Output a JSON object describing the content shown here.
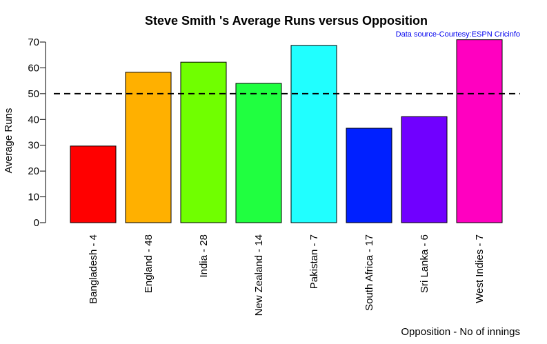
{
  "chart_data": {
    "type": "bar",
    "title": "Steve Smith 's Average Runs versus Opposition",
    "source_note": "Data source-Courtesy:ESPN Cricinfo",
    "xlabel": "Opposition - No of innings",
    "ylabel": "Average Runs",
    "categories": [
      "Bangladesh - 4",
      "England - 48",
      "India - 28",
      "New Zealand - 14",
      "Pakistan - 7",
      "South Africa - 17",
      "Sri Lanka - 6",
      "West Indies - 7"
    ],
    "values": [
      29.7,
      58.3,
      62.2,
      54.0,
      68.7,
      36.6,
      41.1,
      70.9
    ],
    "colors": [
      "#ff0000",
      "#ffb000",
      "#70ff00",
      "#20ff40",
      "#20ffff",
      "#0020ff",
      "#7000ff",
      "#ff00c0"
    ],
    "ylim": [
      0,
      70
    ],
    "yticks": [
      0,
      10,
      20,
      30,
      40,
      50,
      60,
      70
    ],
    "reference_line": 50,
    "reference_line_style": "dashed",
    "grid": false,
    "legend": "none"
  }
}
